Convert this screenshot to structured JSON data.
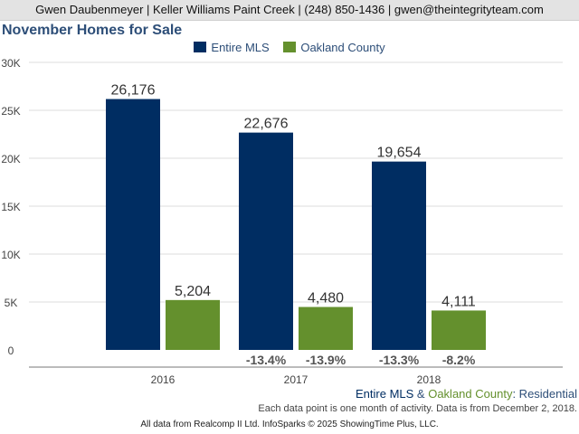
{
  "header": {
    "contact": "Gwen Daubenmeyer | Keller Williams Paint Creek | (248) 850-1436 | gwen@theintegrityteam.com"
  },
  "footer": {
    "series_entire": "Entire MLS",
    "series_amp": " & ",
    "series_oakland": "Oakland County",
    "series_type": ": Residential",
    "note": "Each data point is one month of activity. Data is from December 2, 2018.",
    "source": "All data from Realcomp II Ltd. InfoSparks © 2025 ShowingTime Plus, LLC."
  },
  "colors": {
    "entire_mls": "#002d62",
    "oakland_county": "#64902d",
    "title": "#2d4e78",
    "grid": "#dddddd"
  },
  "chart_data": {
    "type": "bar",
    "title": "November Homes for Sale",
    "categories": [
      "2016",
      "2017",
      "2018"
    ],
    "series": [
      {
        "name": "Entire MLS",
        "values": [
          26176,
          22676,
          19654
        ],
        "value_labels": [
          "26,176",
          "22,676",
          "19,654"
        ],
        "change_labels": [
          "",
          "-13.4%",
          "-13.3%"
        ]
      },
      {
        "name": "Oakland County",
        "values": [
          5204,
          4480,
          4111
        ],
        "value_labels": [
          "5,204",
          "4,480",
          "4,111"
        ],
        "change_labels": [
          "",
          "-13.9%",
          "-8.2%"
        ]
      }
    ],
    "ylim": [
      0,
      30000
    ],
    "yticks": [
      0,
      5000,
      10000,
      15000,
      20000,
      25000,
      30000
    ],
    "ytick_labels": [
      "0",
      "5K",
      "10K",
      "15K",
      "20K",
      "25K",
      "30K"
    ],
    "grid": true,
    "legend": "top-center"
  }
}
